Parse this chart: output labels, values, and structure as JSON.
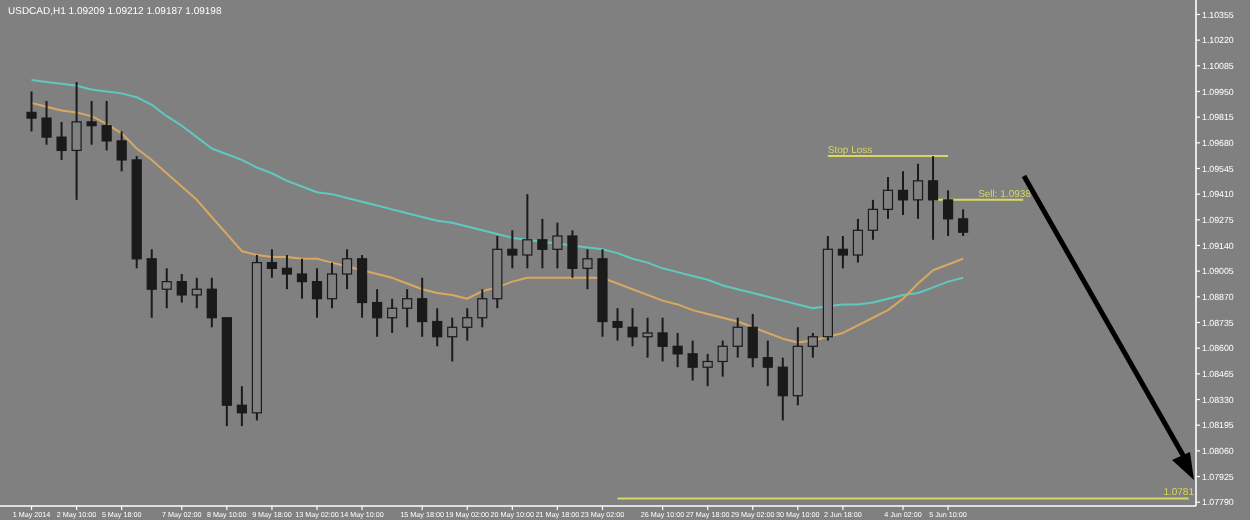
{
  "chart_data": {
    "type": "candlestick",
    "title": "USDCAD,H1 1.09209 1.09212 1.09187 1.09198",
    "color": "#1a1a1a",
    "categories": [
      "1 May 2014",
      null,
      null,
      "2 May 10:00",
      null,
      null,
      "5 May 18:00",
      null,
      null,
      null,
      "7 May 02:00",
      null,
      null,
      "8 May 10:00",
      null,
      null,
      "9 May 18:00",
      null,
      null,
      "13 May 02:00",
      null,
      null,
      "14 May 10:00",
      null,
      null,
      null,
      "15 May 18:00",
      null,
      null,
      "19 May 02:00",
      null,
      null,
      "20 May 10:00",
      null,
      null,
      "21 May 18:00",
      null,
      null,
      "23 May 02:00",
      null,
      null,
      null,
      "26 May 10:00",
      null,
      null,
      "27 May 18:00",
      null,
      null,
      "29 May 02:00",
      null,
      null,
      "30 May 10:00",
      null,
      null,
      "2 Jun 18:00",
      null,
      null,
      null,
      "4 Jun 02:00",
      null,
      null,
      "5 Jun 10:00",
      null,
      null,
      null,
      null,
      null,
      null,
      null,
      null,
      null,
      null,
      null,
      null,
      null,
      null,
      null,
      null
    ],
    "ohlc": [
      [
        1.0984,
        1.0995,
        1.0974,
        1.0981
      ],
      [
        1.0981,
        1.099,
        1.0967,
        1.0971
      ],
      [
        1.0971,
        1.0979,
        1.0959,
        1.0964
      ],
      [
        1.0964,
        1.1,
        1.0938,
        1.0979
      ],
      [
        1.0979,
        1.099,
        1.0967,
        1.0977
      ],
      [
        1.0977,
        1.099,
        1.0964,
        1.0969
      ],
      [
        1.0969,
        1.0974,
        1.0953,
        1.0959
      ],
      [
        1.0959,
        1.0961,
        1.0902,
        1.0907
      ],
      [
        1.0907,
        1.0912,
        1.0876,
        1.0891
      ],
      [
        1.0891,
        1.0902,
        1.0881,
        1.0895
      ],
      [
        1.0895,
        1.0899,
        1.0884,
        1.0888
      ],
      [
        1.0888,
        1.0897,
        1.0881,
        1.0891
      ],
      [
        1.0891,
        1.0897,
        1.0871,
        1.0876
      ],
      [
        1.0876,
        1.0876,
        1.0819,
        1.083
      ],
      [
        1.083,
        1.084,
        1.0819,
        1.0826
      ],
      [
        1.0826,
        1.0909,
        1.0822,
        1.0905
      ],
      [
        1.0905,
        1.0912,
        1.0897,
        1.0902
      ],
      [
        1.0902,
        1.0909,
        1.0891,
        1.0899
      ],
      [
        1.0899,
        1.0907,
        1.0886,
        1.0895
      ],
      [
        1.0895,
        1.0902,
        1.0876,
        1.0886
      ],
      [
        1.0886,
        1.0905,
        1.0881,
        1.0899
      ],
      [
        1.0899,
        1.0912,
        1.0891,
        1.0907
      ],
      [
        1.0907,
        1.0909,
        1.0876,
        1.0884
      ],
      [
        1.0884,
        1.0891,
        1.0866,
        1.0876
      ],
      [
        1.0876,
        1.0886,
        1.0868,
        1.0881
      ],
      [
        1.0881,
        1.0891,
        1.0871,
        1.0886
      ],
      [
        1.0886,
        1.0897,
        1.0866,
        1.0874
      ],
      [
        1.0874,
        1.0881,
        1.0861,
        1.0866
      ],
      [
        1.0866,
        1.0876,
        1.0853,
        1.0871
      ],
      [
        1.0871,
        1.0881,
        1.0864,
        1.0876
      ],
      [
        1.0876,
        1.0891,
        1.0871,
        1.0886
      ],
      [
        1.0886,
        1.0919,
        1.0881,
        1.0912
      ],
      [
        1.0912,
        1.0922,
        1.0902,
        1.0909
      ],
      [
        1.0909,
        1.0941,
        1.0902,
        1.0917
      ],
      [
        1.0917,
        1.0928,
        1.0902,
        1.0912
      ],
      [
        1.0912,
        1.0926,
        1.0902,
        1.0919
      ],
      [
        1.0919,
        1.0922,
        1.0897,
        1.0902
      ],
      [
        1.0902,
        1.0912,
        1.0891,
        1.0907
      ],
      [
        1.0907,
        1.0912,
        1.0866,
        1.0874
      ],
      [
        1.0874,
        1.0881,
        1.0864,
        1.0871
      ],
      [
        1.0871,
        1.0881,
        1.0861,
        1.0866
      ],
      [
        1.0866,
        1.0876,
        1.0855,
        1.0868
      ],
      [
        1.0868,
        1.0876,
        1.0853,
        1.0861
      ],
      [
        1.0861,
        1.0868,
        1.085,
        1.0857
      ],
      [
        1.0857,
        1.0864,
        1.0843,
        1.085
      ],
      [
        1.085,
        1.0857,
        1.084,
        1.0853
      ],
      [
        1.0853,
        1.0864,
        1.0845,
        1.0861
      ],
      [
        1.0861,
        1.0876,
        1.0855,
        1.0871
      ],
      [
        1.0871,
        1.0878,
        1.085,
        1.0855
      ],
      [
        1.0855,
        1.0864,
        1.084,
        1.085
      ],
      [
        1.085,
        1.0855,
        1.0822,
        1.0835
      ],
      [
        1.0835,
        1.0871,
        1.083,
        1.0861
      ],
      [
        1.0861,
        1.0868,
        1.0855,
        1.0866
      ],
      [
        1.0866,
        1.0919,
        1.0864,
        1.0912
      ],
      [
        1.0912,
        1.0919,
        1.0902,
        1.0909
      ],
      [
        1.0909,
        1.0928,
        1.0905,
        1.0922
      ],
      [
        1.0922,
        1.0938,
        1.0917,
        1.0933
      ],
      [
        1.0933,
        1.095,
        1.0928,
        1.0943
      ],
      [
        1.0943,
        1.0953,
        1.093,
        1.0938
      ],
      [
        1.0938,
        1.0957,
        1.0928,
        1.0948
      ],
      [
        1.0948,
        1.0961,
        1.0917,
        1.0938
      ],
      [
        1.0938,
        1.0943,
        1.0919,
        1.0928
      ],
      [
        1.0928,
        1.0933,
        1.0919,
        1.0921
      ],
      null,
      null,
      null,
      null,
      null,
      null,
      null,
      null,
      null,
      null,
      null,
      null,
      null,
      null,
      null
    ],
    "series": [
      {
        "type": "line",
        "color": "#5fc8c0",
        "values": [
          1.1001,
          1.1,
          1.0999,
          1.0998,
          1.0996,
          1.0995,
          1.0994,
          1.0992,
          1.0988,
          1.0982,
          1.0977,
          1.0971,
          1.0965,
          1.0962,
          1.0959,
          1.0955,
          1.0952,
          1.0948,
          1.0945,
          1.0942,
          1.0941,
          1.0939,
          1.0937,
          1.0935,
          1.0933,
          1.0931,
          1.0929,
          1.0927,
          1.0926,
          1.0924,
          1.0922,
          1.092,
          1.0918,
          1.0917,
          1.0916,
          1.0915,
          1.0914,
          1.0913,
          1.0912,
          1.091,
          1.0907,
          1.0905,
          1.0902,
          1.09,
          1.0898,
          1.0896,
          1.0893,
          1.0891,
          1.0889,
          1.0887,
          1.0885,
          1.0883,
          1.0881,
          1.0882,
          1.0883,
          1.0883,
          1.0884,
          1.0886,
          1.0888,
          1.0889,
          1.0892,
          1.0895,
          1.0897,
          null,
          null,
          null,
          null,
          null,
          null,
          null,
          null,
          null,
          null,
          null,
          null,
          null,
          null,
          null
        ]
      },
      {
        "type": "line",
        "color": "#d9a860",
        "values": [
          1.0989,
          1.0987,
          1.0985,
          1.0984,
          1.0982,
          1.0978,
          1.0973,
          1.0965,
          1.0959,
          1.0952,
          1.0945,
          1.0938,
          1.0929,
          1.092,
          1.0911,
          1.0909,
          1.0908,
          1.0908,
          1.0907,
          1.0907,
          1.0905,
          1.0903,
          1.0901,
          1.0899,
          1.0897,
          1.0894,
          1.0891,
          1.0889,
          1.0888,
          1.0886,
          1.089,
          1.0892,
          1.0895,
          1.0897,
          1.0897,
          1.0897,
          1.0897,
          1.0897,
          1.0897,
          1.0894,
          1.0891,
          1.0888,
          1.0885,
          1.0883,
          1.088,
          1.0878,
          1.0876,
          1.0874,
          1.0871,
          1.0868,
          1.0865,
          1.0863,
          1.0864,
          1.0866,
          1.0868,
          1.0872,
          1.0876,
          1.088,
          1.0886,
          1.0894,
          1.0901,
          1.0904,
          1.0907,
          null,
          null,
          null,
          null,
          null,
          null,
          null,
          null,
          null,
          null,
          null,
          null,
          null,
          null,
          null
        ]
      },
      {
        "type": "line",
        "name": "Stop Loss",
        "color": "#d8d860",
        "values": [
          null,
          null,
          null,
          null,
          null,
          null,
          null,
          null,
          null,
          null,
          null,
          null,
          null,
          null,
          null,
          null,
          null,
          null,
          null,
          null,
          null,
          null,
          null,
          null,
          null,
          null,
          null,
          null,
          null,
          null,
          null,
          null,
          null,
          null,
          null,
          null,
          null,
          null,
          null,
          null,
          null,
          null,
          null,
          null,
          null,
          null,
          null,
          null,
          null,
          null,
          null,
          null,
          null,
          1.0961,
          1.0961,
          1.0961,
          1.0961,
          1.0961,
          1.0961,
          1.0961,
          1.0961,
          1.0961,
          null,
          null,
          null,
          null,
          null,
          null,
          null,
          null,
          null,
          null,
          null,
          null,
          null,
          null,
          null,
          null
        ]
      },
      {
        "type": "line",
        "name": "Sell: 1.0938",
        "color": "#d8d860",
        "values": [
          null,
          null,
          null,
          null,
          null,
          null,
          null,
          null,
          null,
          null,
          null,
          null,
          null,
          null,
          null,
          null,
          null,
          null,
          null,
          null,
          null,
          null,
          null,
          null,
          null,
          null,
          null,
          null,
          null,
          null,
          null,
          null,
          null,
          null,
          null,
          null,
          null,
          null,
          null,
          null,
          null,
          null,
          null,
          null,
          null,
          null,
          null,
          null,
          null,
          null,
          null,
          null,
          null,
          null,
          null,
          null,
          null,
          null,
          null,
          null,
          1.0938,
          1.0938,
          1.0938,
          1.0938,
          1.0938,
          1.0938,
          1.0938,
          null,
          null,
          null,
          null,
          null,
          null,
          null,
          null,
          null,
          null,
          null
        ]
      },
      {
        "type": "line",
        "name": "1.0781",
        "color": "#d8d860",
        "values": [
          null,
          null,
          null,
          null,
          null,
          null,
          null,
          null,
          null,
          null,
          null,
          null,
          null,
          null,
          null,
          null,
          null,
          null,
          null,
          null,
          null,
          null,
          null,
          null,
          null,
          null,
          null,
          null,
          null,
          null,
          null,
          null,
          null,
          null,
          null,
          null,
          null,
          null,
          null,
          1.0781,
          1.0781,
          1.0781,
          1.0781,
          1.0781,
          1.0781,
          1.0781,
          1.0781,
          1.0781,
          1.0781,
          1.0781,
          1.0781,
          1.0781,
          1.0781,
          1.0781,
          1.0781,
          1.0781,
          1.0781,
          1.0781,
          1.0781,
          1.0781,
          1.0781,
          1.0781,
          1.0781,
          1.0781,
          1.0781,
          1.0781,
          1.0781,
          1.0781,
          1.0781,
          1.0781,
          1.0781,
          1.0781,
          1.0781,
          1.0781,
          1.0781,
          1.0781,
          1.0781,
          1.0781
        ]
      }
    ],
    "ylim": [
      1.0777,
      1.1041
    ],
    "yticks": [
      {
        "value": 1.0779,
        "label": "1.07790"
      },
      {
        "value": 1.07925,
        "label": "1.07925"
      },
      {
        "value": 1.0806,
        "label": "1.08060"
      },
      {
        "value": 1.08195,
        "label": "1.08195"
      },
      {
        "value": 1.0833,
        "label": "1.08330"
      },
      {
        "value": 1.08465,
        "label": "1.08465"
      },
      {
        "value": 1.086,
        "label": "1.08600"
      },
      {
        "value": 1.08735,
        "label": "1.08735"
      },
      {
        "value": 1.0887,
        "label": "1.08870"
      },
      {
        "value": 1.09005,
        "label": "1.09005"
      },
      {
        "value": 1.0914,
        "label": "1.09140"
      },
      {
        "value": 1.09275,
        "label": "1.09275"
      },
      {
        "value": 1.0941,
        "label": "1.09410"
      },
      {
        "value": 1.09545,
        "label": "1.09545"
      },
      {
        "value": 1.0968,
        "label": "1.09680"
      },
      {
        "value": 1.09815,
        "label": "1.09815"
      },
      {
        "value": 1.0995,
        "label": "1.09950"
      },
      {
        "value": 1.10085,
        "label": "1.10085"
      },
      {
        "value": 1.1022,
        "label": "1.10220"
      },
      {
        "value": 1.10355,
        "label": "1.10355"
      }
    ],
    "grid": false
  }
}
